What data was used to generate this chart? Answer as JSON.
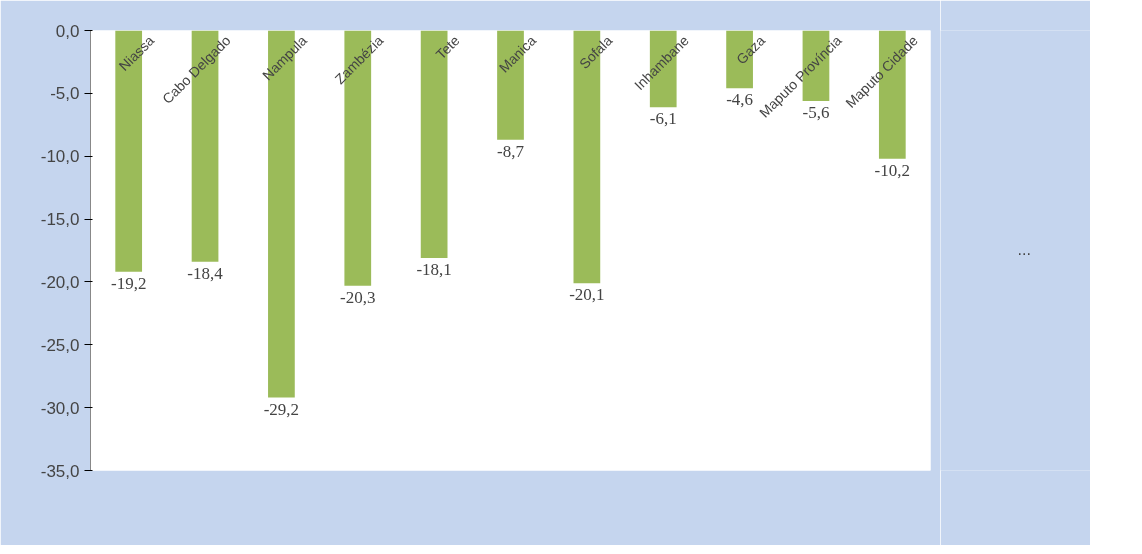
{
  "chart_data": {
    "type": "bar",
    "categories": [
      "Niassa",
      "Cabo Delgado",
      "Nampula",
      "Zambézia",
      "Tete",
      "Manica",
      "Sofala",
      "Inhambane",
      "Gaza",
      "Maputo Província",
      "Maputo Cidade"
    ],
    "series": [
      {
        "name": "...",
        "color": "#9bbb59",
        "values": [
          -19.2,
          -18.4,
          -29.2,
          -20.3,
          -18.1,
          -8.7,
          -20.1,
          -6.1,
          -4.6,
          -5.6,
          -10.2
        ],
        "value_labels": [
          "-19,2",
          "-18,4",
          "-29,2",
          "-20,3",
          "-18,1",
          "-8,7",
          "-20,1",
          "-6,1",
          "-4,6",
          "-5,6",
          "-10,2"
        ]
      }
    ],
    "ylim": [
      -35,
      0
    ],
    "yticks": [
      {
        "value": 0,
        "label": "0,0"
      },
      {
        "value": -5,
        "label": "-5,0"
      },
      {
        "value": -10,
        "label": "-10,0"
      },
      {
        "value": -15,
        "label": "-15,0"
      },
      {
        "value": -20,
        "label": "-20,0"
      },
      {
        "value": -25,
        "label": "-25,0"
      },
      {
        "value": -30,
        "label": "-30,0"
      },
      {
        "value": -35,
        "label": "-35,0"
      }
    ],
    "grid": false,
    "legend": "right"
  }
}
